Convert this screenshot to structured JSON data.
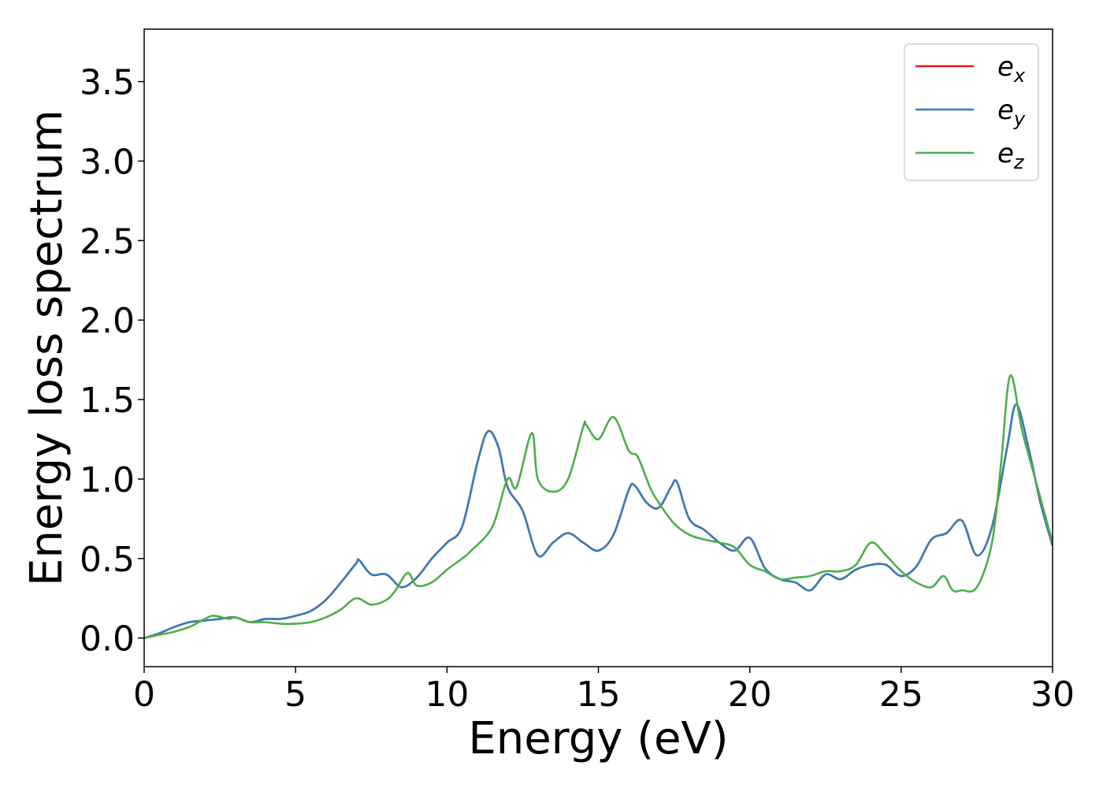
{
  "chart_data": {
    "type": "line",
    "title": "",
    "xlabel": "Energy (eV)",
    "ylabel": "Energy loss spectrum",
    "xlim": [
      0,
      30
    ],
    "ylim": [
      -0.18,
      3.83
    ],
    "xticks": [
      "0",
      "5",
      "10",
      "15",
      "20",
      "25",
      "30"
    ],
    "xtick_values": [
      0,
      5,
      10,
      15,
      20,
      25,
      30
    ],
    "yticks": [
      "0.0",
      "0.5",
      "1.0",
      "1.5",
      "2.0",
      "2.5",
      "3.0",
      "3.5"
    ],
    "ytick_values": [
      0,
      0.5,
      1.0,
      1.5,
      2.0,
      2.5,
      3.0,
      3.5
    ],
    "grid": false,
    "legend_position": "top-right",
    "series": [
      {
        "name": "e",
        "subscript": "x",
        "color": "#e41a1c",
        "x": [
          0,
          0.5,
          1.0,
          1.5,
          2.0,
          2.5,
          3.0,
          3.5,
          4.0,
          4.5,
          5.0,
          5.5,
          6.0,
          6.5,
          7.0,
          7.1,
          7.5,
          8.0,
          8.5,
          9.0,
          9.5,
          10.0,
          10.5,
          11.0,
          11.35,
          11.7,
          12.0,
          12.5,
          13.0,
          13.5,
          14.0,
          14.5,
          15.0,
          15.5,
          16.0,
          16.2,
          16.6,
          17.0,
          17.4,
          17.6,
          18.0,
          18.5,
          19.0,
          19.5,
          20.0,
          20.5,
          21.0,
          21.5,
          22.0,
          22.5,
          23.0,
          23.5,
          24.0,
          24.5,
          25.0,
          25.5,
          26.0,
          26.5,
          27.0,
          27.5,
          28.0,
          28.5,
          28.8,
          29.2,
          29.6,
          30.0
        ],
        "values": [
          0.0,
          0.03,
          0.07,
          0.1,
          0.11,
          0.12,
          0.13,
          0.1,
          0.12,
          0.12,
          0.14,
          0.17,
          0.24,
          0.35,
          0.47,
          0.49,
          0.4,
          0.4,
          0.32,
          0.38,
          0.5,
          0.6,
          0.7,
          1.1,
          1.3,
          1.2,
          0.95,
          0.8,
          0.52,
          0.6,
          0.66,
          0.6,
          0.55,
          0.65,
          0.93,
          0.96,
          0.85,
          0.82,
          0.95,
          0.98,
          0.75,
          0.68,
          0.6,
          0.55,
          0.63,
          0.44,
          0.37,
          0.35,
          0.3,
          0.4,
          0.37,
          0.43,
          0.46,
          0.46,
          0.39,
          0.45,
          0.62,
          0.66,
          0.74,
          0.52,
          0.7,
          1.2,
          1.47,
          1.2,
          0.85,
          0.58
        ]
      },
      {
        "name": "e",
        "subscript": "y",
        "color": "#377eb8",
        "x": [
          0,
          0.5,
          1.0,
          1.5,
          2.0,
          2.5,
          3.0,
          3.5,
          4.0,
          4.5,
          5.0,
          5.5,
          6.0,
          6.5,
          7.0,
          7.1,
          7.5,
          8.0,
          8.5,
          9.0,
          9.5,
          10.0,
          10.5,
          11.0,
          11.35,
          11.7,
          12.0,
          12.5,
          13.0,
          13.5,
          14.0,
          14.5,
          15.0,
          15.5,
          16.0,
          16.2,
          16.6,
          17.0,
          17.4,
          17.6,
          18.0,
          18.5,
          19.0,
          19.5,
          20.0,
          20.5,
          21.0,
          21.5,
          22.0,
          22.5,
          23.0,
          23.5,
          24.0,
          24.5,
          25.0,
          25.5,
          26.0,
          26.5,
          27.0,
          27.5,
          28.0,
          28.5,
          28.8,
          29.2,
          29.6,
          30.0
        ],
        "values": [
          0.0,
          0.03,
          0.07,
          0.1,
          0.11,
          0.12,
          0.13,
          0.1,
          0.12,
          0.12,
          0.14,
          0.17,
          0.24,
          0.35,
          0.47,
          0.49,
          0.4,
          0.4,
          0.32,
          0.38,
          0.5,
          0.6,
          0.7,
          1.1,
          1.3,
          1.2,
          0.95,
          0.8,
          0.52,
          0.6,
          0.66,
          0.6,
          0.55,
          0.65,
          0.93,
          0.96,
          0.85,
          0.82,
          0.95,
          0.98,
          0.75,
          0.68,
          0.6,
          0.55,
          0.63,
          0.44,
          0.37,
          0.35,
          0.3,
          0.4,
          0.37,
          0.43,
          0.46,
          0.46,
          0.39,
          0.45,
          0.62,
          0.66,
          0.74,
          0.52,
          0.7,
          1.2,
          1.47,
          1.2,
          0.85,
          0.58
        ]
      },
      {
        "name": "e",
        "subscript": "z",
        "color": "#4daf4a",
        "x": [
          0,
          0.5,
          1.0,
          1.5,
          2.0,
          2.3,
          2.8,
          3.0,
          3.5,
          4.0,
          4.5,
          5.0,
          5.5,
          6.0,
          6.5,
          7.0,
          7.5,
          8.0,
          8.3,
          8.7,
          9.0,
          9.5,
          10.0,
          10.5,
          10.8,
          11.5,
          12.0,
          12.3,
          12.8,
          13.0,
          13.5,
          14.0,
          14.5,
          14.6,
          15.0,
          15.5,
          16.0,
          16.3,
          16.7,
          17.0,
          17.5,
          18.0,
          18.5,
          19.0,
          19.5,
          20.0,
          20.5,
          21.0,
          21.5,
          22.0,
          22.5,
          23.0,
          23.5,
          24.0,
          24.5,
          25.0,
          25.5,
          26.0,
          26.4,
          26.7,
          27.0,
          27.5,
          28.0,
          28.3,
          28.6,
          29.0,
          29.5,
          30.0
        ],
        "values": [
          0.0,
          0.02,
          0.04,
          0.07,
          0.12,
          0.14,
          0.12,
          0.13,
          0.1,
          0.1,
          0.09,
          0.09,
          0.1,
          0.13,
          0.18,
          0.25,
          0.21,
          0.24,
          0.3,
          0.41,
          0.33,
          0.35,
          0.43,
          0.5,
          0.55,
          0.7,
          1.0,
          0.95,
          1.29,
          1.0,
          0.92,
          1.0,
          1.33,
          1.34,
          1.25,
          1.39,
          1.18,
          1.14,
          0.95,
          0.85,
          0.72,
          0.65,
          0.62,
          0.6,
          0.57,
          0.46,
          0.42,
          0.37,
          0.38,
          0.39,
          0.42,
          0.42,
          0.46,
          0.6,
          0.52,
          0.42,
          0.35,
          0.32,
          0.39,
          0.3,
          0.3,
          0.32,
          0.6,
          1.1,
          1.65,
          1.3,
          0.95,
          0.6
        ]
      }
    ]
  }
}
